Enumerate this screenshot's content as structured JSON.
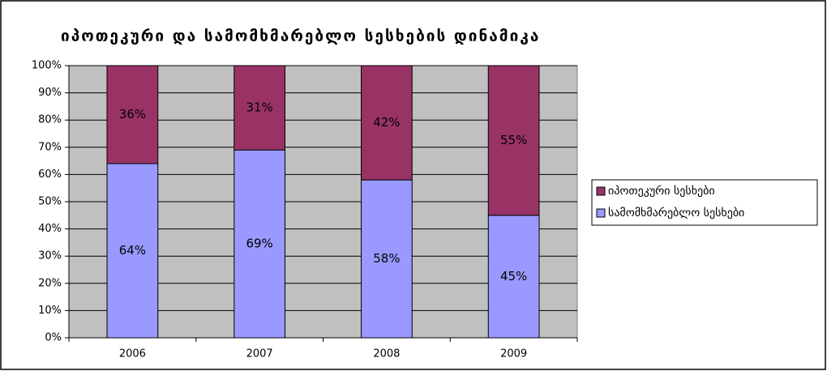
{
  "chart_data": {
    "type": "stacked_bar_100",
    "title": "იპოთეკური და სამომხმარებლო სესხების დინამიკა",
    "categories": [
      "2006",
      "2007",
      "2008",
      "2009"
    ],
    "series": [
      {
        "name": "იპოთეკური სესხები",
        "color": "#993366",
        "values": [
          36,
          31,
          42,
          55
        ],
        "value_labels": [
          "36%",
          "31%",
          "42%",
          "55%"
        ]
      },
      {
        "name": "სამომხმარებლო სესხები",
        "color": "#9999ff",
        "values": [
          64,
          69,
          58,
          45
        ],
        "value_labels": [
          "64%",
          "69%",
          "58%",
          "45%"
        ]
      }
    ],
    "ylim": [
      0,
      100
    ],
    "yticks": [
      {
        "value": 0,
        "label": "0%"
      },
      {
        "value": 10,
        "label": "10%"
      },
      {
        "value": 20,
        "label": "20%"
      },
      {
        "value": 30,
        "label": "30%"
      },
      {
        "value": 40,
        "label": "40%"
      },
      {
        "value": 50,
        "label": "50%"
      },
      {
        "value": 60,
        "label": "60%"
      },
      {
        "value": 70,
        "label": "70%"
      },
      {
        "value": 80,
        "label": "80%"
      },
      {
        "value": 90,
        "label": "90%"
      },
      {
        "value": 100,
        "label": "100%"
      }
    ],
    "grid": true,
    "legend": "right",
    "plot_background": "#c0c0c0"
  }
}
